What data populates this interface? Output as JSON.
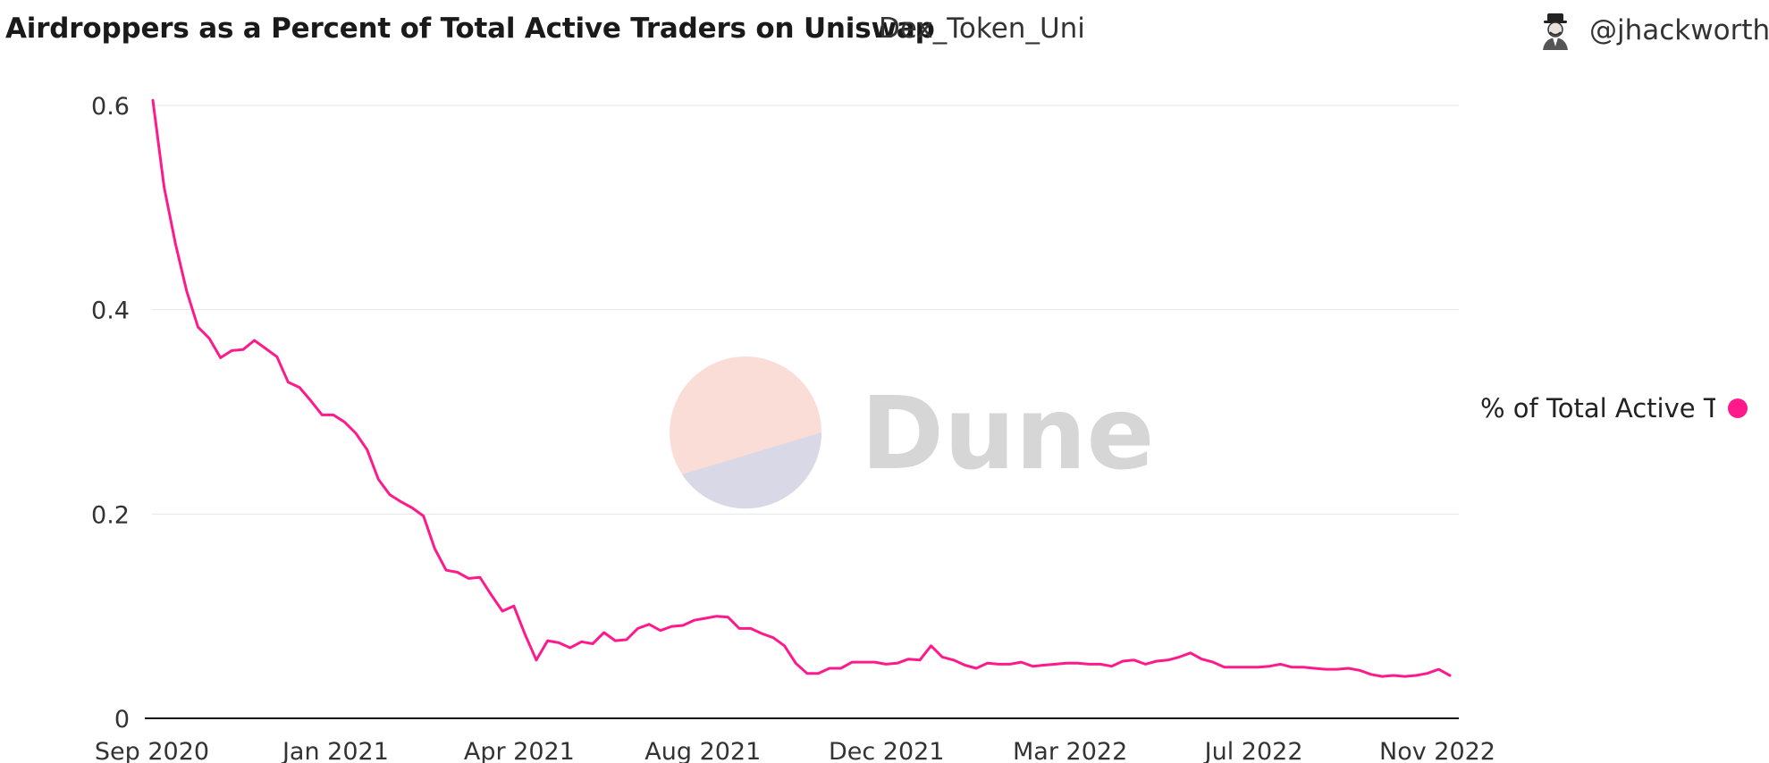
{
  "header": {
    "title": "Airdroppers as a Percent of Total Active Traders on Uniswap",
    "subtitle": "Dex_Token_Uni",
    "author": "@jhackworth"
  },
  "watermark": {
    "text": "Dune"
  },
  "legend": {
    "label": "% of Total Active T",
    "color": "#ff1a8c",
    "placement": "right"
  },
  "chart_data": {
    "type": "line",
    "title": "Airdroppers as a Percent of Total Active Traders on Uniswap",
    "xlabel": "",
    "ylabel": "",
    "ylim": [
      0,
      0.6
    ],
    "grid": true,
    "yticks": [
      "0",
      "0.2",
      "0.4",
      "0.6"
    ],
    "xticks": [
      "Sep 2020",
      "Jan 2021",
      "Apr 2021",
      "Aug 2021",
      "Dec 2021",
      "Mar 2022",
      "Jul 2022",
      "Nov 2022"
    ],
    "series": [
      {
        "name": "% of Total Active T",
        "color": "#ff1a8c",
        "values": [
          0.605,
          0.52,
          0.465,
          0.418,
          0.383,
          0.372,
          0.353,
          0.36,
          0.361,
          0.37,
          0.362,
          0.354,
          0.329,
          0.324,
          0.311,
          0.297,
          0.297,
          0.29,
          0.279,
          0.263,
          0.234,
          0.219,
          0.212,
          0.206,
          0.198,
          0.166,
          0.145,
          0.143,
          0.137,
          0.138,
          0.121,
          0.105,
          0.11,
          0.082,
          0.057,
          0.076,
          0.074,
          0.069,
          0.075,
          0.073,
          0.084,
          0.076,
          0.077,
          0.088,
          0.092,
          0.086,
          0.09,
          0.091,
          0.096,
          0.098,
          0.1,
          0.099,
          0.088,
          0.088,
          0.083,
          0.079,
          0.071,
          0.054,
          0.044,
          0.044,
          0.049,
          0.049,
          0.055,
          0.055,
          0.055,
          0.053,
          0.054,
          0.058,
          0.057,
          0.071,
          0.06,
          0.057,
          0.052,
          0.049,
          0.054,
          0.053,
          0.053,
          0.055,
          0.051,
          0.052,
          0.053,
          0.054,
          0.054,
          0.053,
          0.053,
          0.051,
          0.056,
          0.057,
          0.053,
          0.056,
          0.057,
          0.06,
          0.064,
          0.058,
          0.055,
          0.05,
          0.05,
          0.05,
          0.05,
          0.051,
          0.053,
          0.05,
          0.05,
          0.049,
          0.048,
          0.048,
          0.049,
          0.047,
          0.043,
          0.041,
          0.042,
          0.041,
          0.042,
          0.044,
          0.048,
          0.042
        ]
      }
    ]
  }
}
